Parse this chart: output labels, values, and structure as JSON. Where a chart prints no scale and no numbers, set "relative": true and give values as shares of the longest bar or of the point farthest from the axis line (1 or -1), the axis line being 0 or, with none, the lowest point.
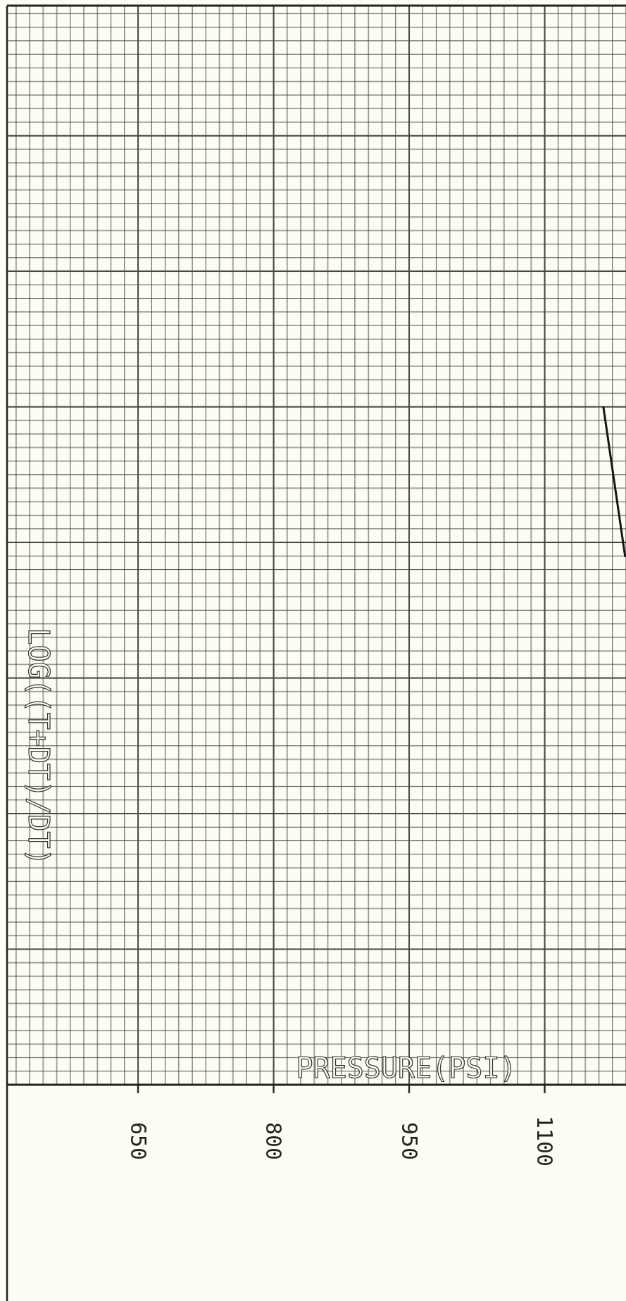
{
  "chart_data": {
    "type": "line",
    "xlabel": "PRESSURE(PSI)",
    "ylabel": "LOG((T+DT)/DT)",
    "relative": true,
    "xlim": [
      505,
      1190
    ],
    "xticks": [
      650,
      800,
      950,
      1100
    ],
    "grid": true,
    "marker": "none",
    "line_style": "solid",
    "series": [
      {
        "color": "#151515",
        "x": [
          1165,
          1189
        ],
        "values": [
          1,
          0.78
        ]
      }
    ]
  }
}
